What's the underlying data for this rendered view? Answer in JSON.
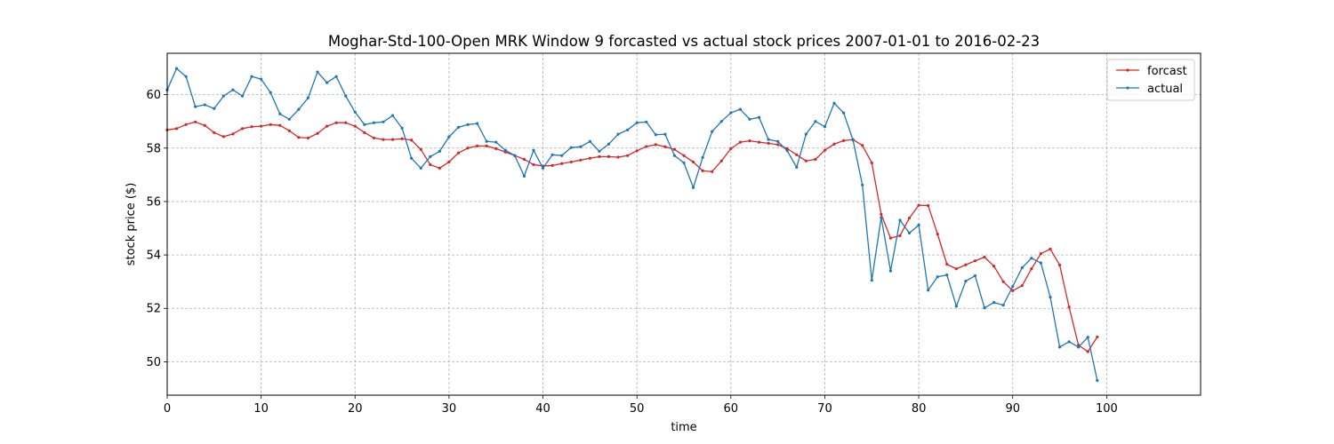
{
  "chart_data": {
    "type": "line",
    "title": "Moghar-Std-100-Open MRK Window 9 forcasted vs actual stock prices 2007-01-01 to 2016-02-23",
    "xlabel": "time",
    "ylabel": "stock price ($)",
    "xlim": [
      0,
      110
    ],
    "ylim": [
      48.75,
      61.55
    ],
    "xticks": [
      0,
      10,
      20,
      30,
      40,
      50,
      60,
      70,
      80,
      90,
      100
    ],
    "yticks": [
      50,
      52,
      54,
      56,
      58,
      60
    ],
    "grid": true,
    "legend_position": "top-right",
    "series": [
      {
        "name": "forcast",
        "color": "#d62728",
        "values": [
          58.68,
          58.73,
          58.88,
          58.98,
          58.85,
          58.58,
          58.43,
          58.53,
          58.73,
          58.8,
          58.82,
          58.88,
          58.85,
          58.65,
          58.4,
          58.38,
          58.55,
          58.82,
          58.95,
          58.95,
          58.82,
          58.58,
          58.38,
          58.32,
          58.32,
          58.35,
          58.3,
          57.95,
          57.38,
          57.25,
          57.48,
          57.82,
          58.0,
          58.08,
          58.08,
          57.98,
          57.85,
          57.72,
          57.58,
          57.38,
          57.33,
          57.35,
          57.42,
          57.48,
          57.55,
          57.62,
          57.68,
          57.68,
          57.66,
          57.72,
          57.9,
          58.06,
          58.13,
          58.05,
          57.95,
          57.72,
          57.48,
          57.15,
          57.12,
          57.52,
          57.98,
          58.22,
          58.27,
          58.22,
          58.18,
          58.13,
          57.98,
          57.75,
          57.52,
          57.58,
          57.92,
          58.15,
          58.28,
          58.32,
          58.1,
          57.45,
          55.52,
          54.63,
          54.72,
          55.38,
          55.86,
          55.85,
          54.78,
          53.65,
          53.48,
          53.63,
          53.78,
          53.92,
          53.58,
          53.0,
          52.66,
          52.85,
          53.48,
          54.05,
          54.22,
          53.62,
          52.05,
          50.62,
          50.38,
          50.93
        ]
      },
      {
        "name": "actual",
        "color": "#1f77b4",
        "values": [
          60.18,
          60.98,
          60.68,
          59.55,
          59.62,
          59.48,
          59.95,
          60.18,
          59.95,
          60.68,
          60.58,
          60.08,
          59.28,
          59.08,
          59.45,
          59.88,
          60.85,
          60.45,
          60.68,
          59.95,
          59.35,
          58.88,
          58.95,
          58.98,
          59.22,
          58.75,
          57.62,
          57.25,
          57.68,
          57.88,
          58.42,
          58.78,
          58.88,
          58.92,
          58.25,
          58.22,
          57.92,
          57.72,
          56.95,
          57.92,
          57.25,
          57.75,
          57.72,
          58.02,
          58.05,
          58.25,
          57.88,
          58.15,
          58.52,
          58.68,
          58.95,
          58.98,
          58.5,
          58.52,
          57.72,
          57.45,
          56.52,
          57.65,
          58.62,
          59.0,
          59.32,
          59.45,
          59.08,
          59.15,
          58.32,
          58.25,
          57.9,
          57.28,
          58.52,
          59.0,
          58.8,
          59.68,
          59.32,
          58.3,
          56.62,
          53.05,
          55.4,
          53.4,
          55.3,
          54.82,
          55.12,
          52.68,
          53.18,
          53.25,
          52.08,
          53.02,
          53.22,
          52.02,
          52.22,
          52.12,
          52.82,
          53.52,
          53.88,
          53.7,
          52.42,
          50.55,
          50.75,
          50.55,
          50.92,
          49.3
        ]
      }
    ]
  }
}
